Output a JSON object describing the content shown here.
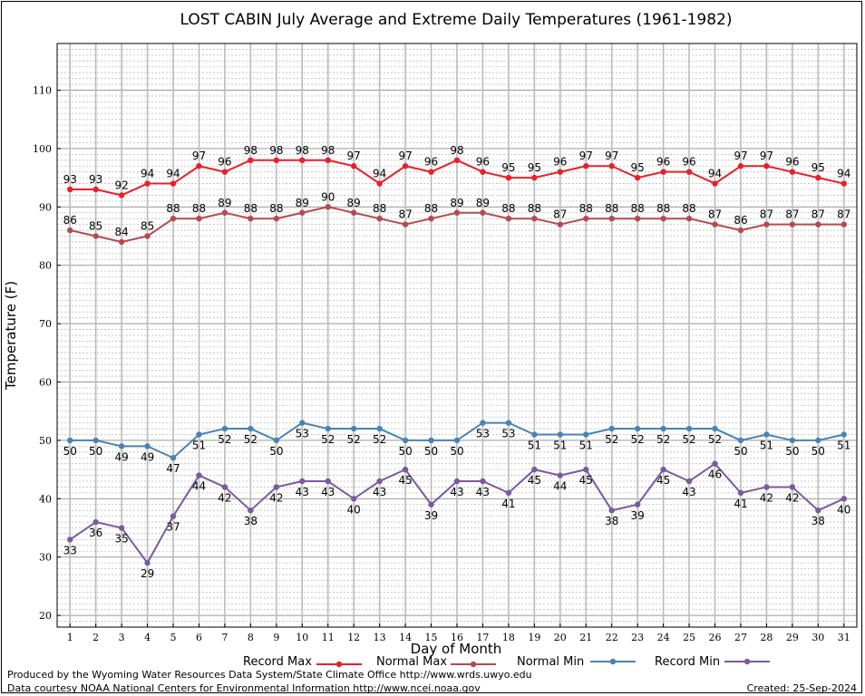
{
  "chart_data": {
    "type": "line",
    "title": "LOST CABIN July Average and Extreme Daily Temperatures (1961-1982)",
    "xlabel": "Day of Month",
    "ylabel": "Temperature (F)",
    "x": [
      1,
      2,
      3,
      4,
      5,
      6,
      7,
      8,
      9,
      10,
      11,
      12,
      13,
      14,
      15,
      16,
      17,
      18,
      19,
      20,
      21,
      22,
      23,
      24,
      25,
      26,
      27,
      28,
      29,
      30,
      31
    ],
    "x_ticks": [
      "1",
      "2",
      "3",
      "4",
      "5",
      "6",
      "7",
      "8",
      "9",
      "10",
      "11",
      "12",
      "13",
      "14",
      "15",
      "16",
      "17",
      "18",
      "19",
      "20",
      "21",
      "22",
      "23",
      "24",
      "25",
      "26",
      "27",
      "28",
      "29",
      "30",
      "31"
    ],
    "ylim": [
      18,
      118
    ],
    "y_ticks": [
      "20",
      "30",
      "40",
      "50",
      "60",
      "70",
      "80",
      "90",
      "100",
      "110"
    ],
    "grid": true,
    "legend_position": "bottom",
    "series": [
      {
        "name": "Record Max",
        "color": "#e8202a",
        "label_pos": "above",
        "values": [
          93,
          93,
          92,
          94,
          94,
          97,
          96,
          98,
          98,
          98,
          98,
          97,
          94,
          97,
          96,
          98,
          96,
          95,
          95,
          96,
          97,
          97,
          95,
          96,
          96,
          94,
          97,
          97,
          96,
          95,
          94
        ]
      },
      {
        "name": "Normal Max",
        "color": "#b54a4e",
        "label_pos": "above",
        "values": [
          86,
          85,
          84,
          85,
          88,
          88,
          89,
          88,
          88,
          89,
          90,
          89,
          88,
          87,
          88,
          89,
          89,
          88,
          88,
          87,
          88,
          88,
          88,
          88,
          88,
          87,
          86,
          87,
          87,
          87,
          87
        ]
      },
      {
        "name": "Normal Min",
        "color": "#4a82b4",
        "label_pos": "below",
        "values": [
          50,
          50,
          49,
          49,
          47,
          51,
          52,
          52,
          50,
          53,
          52,
          52,
          52,
          50,
          50,
          50,
          53,
          53,
          51,
          51,
          51,
          52,
          52,
          52,
          52,
          52,
          50,
          51,
          50,
          50,
          51
        ]
      },
      {
        "name": "Record Min",
        "color": "#7a5a9e",
        "label_pos": "below",
        "values": [
          33,
          36,
          35,
          29,
          37,
          44,
          42,
          38,
          42,
          43,
          43,
          40,
          43,
          45,
          39,
          43,
          43,
          41,
          45,
          44,
          45,
          38,
          39,
          45,
          43,
          46,
          41,
          42,
          42,
          38,
          40
        ]
      }
    ]
  },
  "footer": {
    "produced_by": "Produced by the Wyoming Water Resources Data System/State Climate Office http://www.wrds.uwyo.edu",
    "courtesy": "Data courtesy NOAA National Centers for Environmental Information http://www.ncei.noaa.gov",
    "created": "Created:  25-Sep-2024"
  }
}
